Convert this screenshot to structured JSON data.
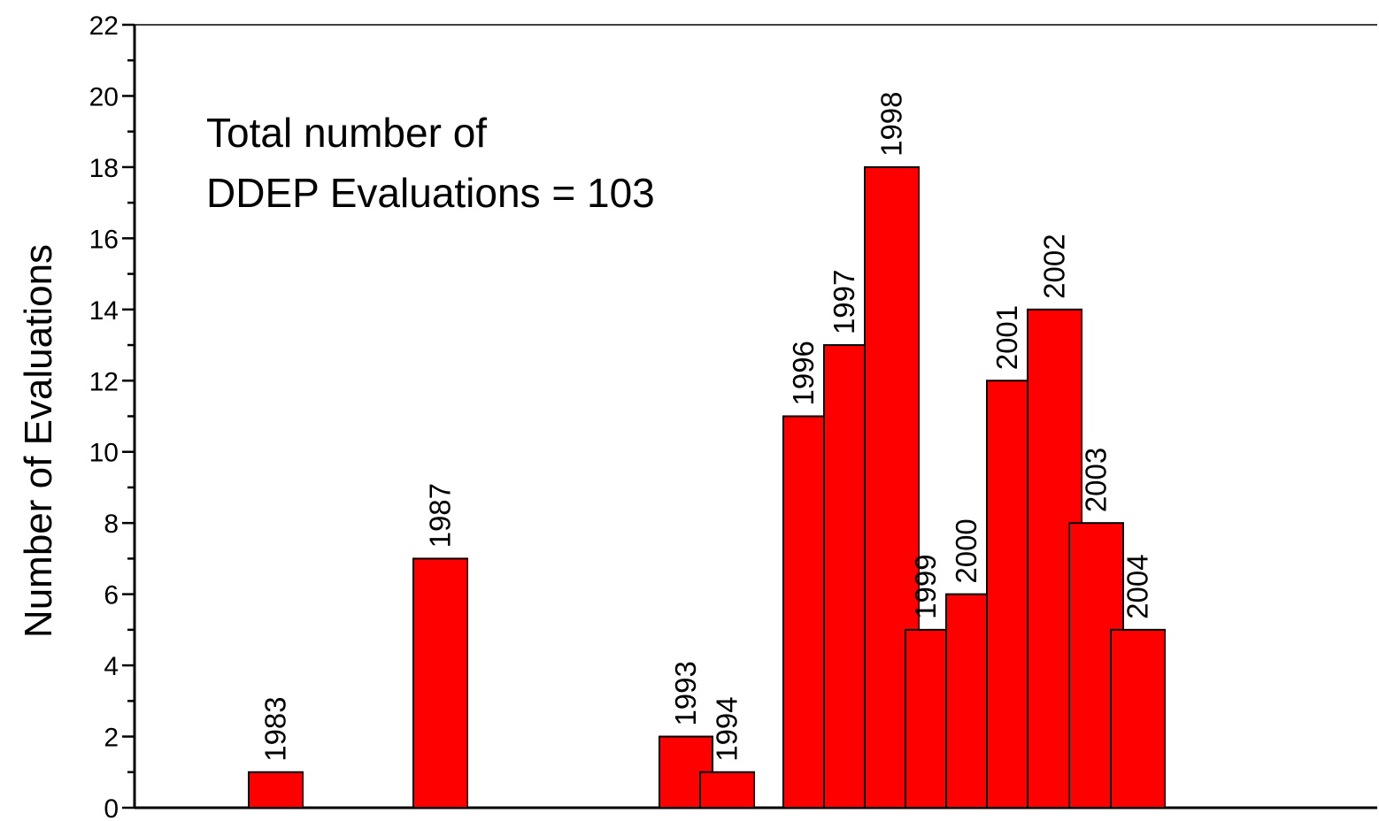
{
  "chart_data": {
    "type": "bar",
    "title": "",
    "xlabel": "",
    "ylabel": "Number of Evaluations",
    "ylim": [
      0,
      22
    ],
    "yticks": [
      0,
      2,
      4,
      6,
      8,
      10,
      12,
      14,
      16,
      18,
      20,
      22
    ],
    "grid": false,
    "legend": "none",
    "bar_color": "#ff0000",
    "annotation": {
      "lines": [
        "Total number of",
        "DDEP Evaluations = 103"
      ]
    },
    "categories": [
      "1983",
      "1987",
      "1993",
      "1994",
      "1996",
      "1997",
      "1998",
      "1999",
      "2000",
      "2001",
      "2002",
      "2003",
      "2004"
    ],
    "values": [
      1,
      7,
      2,
      1,
      11,
      13,
      18,
      5,
      6,
      12,
      14,
      8,
      5
    ]
  }
}
